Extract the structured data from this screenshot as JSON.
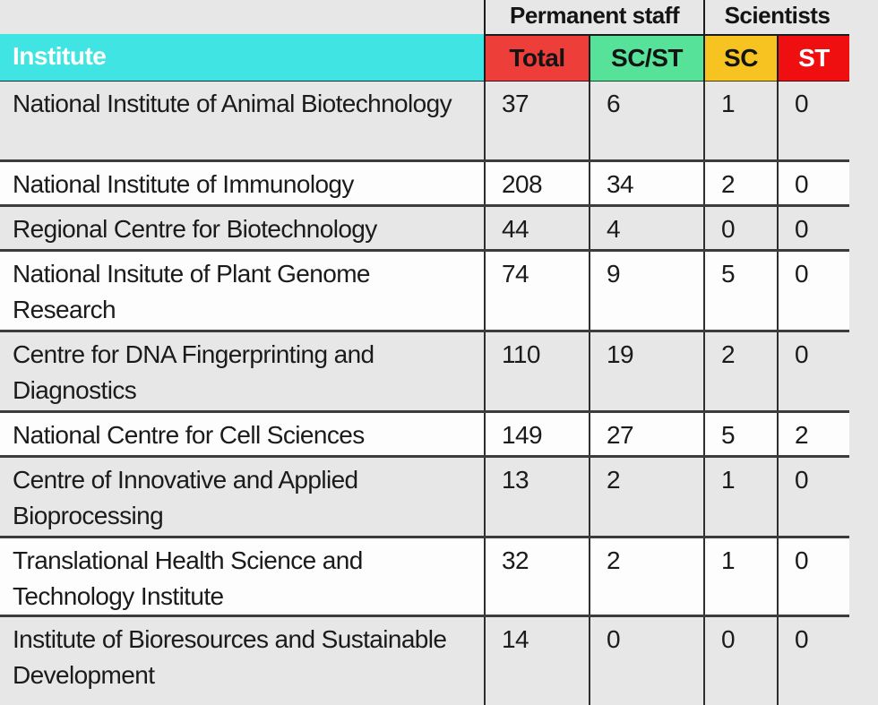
{
  "table": {
    "group_headers": {
      "permanent_staff": "Permanent staff",
      "scientists": "Scientists"
    },
    "columns": {
      "institute": "Institute",
      "total": "Total",
      "sc_st": "SC/ST",
      "sc": "SC",
      "st": "ST"
    },
    "rows": [
      {
        "institute": "National Institute of Animal Biotechnology",
        "total": "37",
        "sc_st": "6",
        "sc": "1",
        "st": "0"
      },
      {
        "institute": "National Institute of Immunology",
        "total": "208",
        "sc_st": "34",
        "sc": "2",
        "st": "0"
      },
      {
        "institute": "Regional Centre for Biotechnology",
        "total": "44",
        "sc_st": "4",
        "sc": "0",
        "st": "0"
      },
      {
        "institute": "National Insitute of Plant Genome Research",
        "total": "74",
        "sc_st": "9",
        "sc": "5",
        "st": "0"
      },
      {
        "institute": "Centre for DNA Fingerprinting and Diagnostics",
        "total": "110",
        "sc_st": "19",
        "sc": "2",
        "st": "0"
      },
      {
        "institute": "National Centre for Cell Sciences",
        "total": "149",
        "sc_st": "27",
        "sc": "5",
        "st": "2"
      },
      {
        "institute": "Centre of Innovative and Applied Bioprocessing",
        "total": "13",
        "sc_st": "2",
        "sc": "1",
        "st": "0"
      },
      {
        "institute": "Translational Health Science and Technology Institute",
        "total": "32",
        "sc_st": "2",
        "sc": "1",
        "st": "0"
      },
      {
        "institute": "Institute of Bioresources and Sustainable Development",
        "total": "14",
        "sc_st": "0",
        "sc": "0",
        "st": "0"
      }
    ]
  },
  "colors": {
    "institute_header_bg": "#40e5e3",
    "total_header_bg": "#ee3e3a",
    "sc_st_header_bg": "#57e299",
    "sc_header_bg": "#f6c320",
    "st_header_bg": "#ef0e10",
    "row_gray_bg": "#e8e7e7",
    "row_white_bg": "#fdfdfd",
    "body_text": "#1b1b1b"
  },
  "chart_data": {
    "type": "table",
    "title": "",
    "column_groups": [
      {
        "label": "Permanent staff",
        "columns": [
          "Total",
          "SC/ST"
        ]
      },
      {
        "label": "Scientists",
        "columns": [
          "SC",
          "ST"
        ]
      }
    ],
    "columns": [
      "Institute",
      "Total",
      "SC/ST",
      "SC",
      "ST"
    ],
    "rows": [
      [
        "National Institute of Animal Biotechnology",
        37,
        6,
        1,
        0
      ],
      [
        "National Institute of Immunology",
        208,
        34,
        2,
        0
      ],
      [
        "Regional Centre for Biotechnology",
        44,
        4,
        0,
        0
      ],
      [
        "National Insitute of Plant Genome Research",
        74,
        9,
        5,
        0
      ],
      [
        "Centre for DNA Fingerprinting and Diagnostics",
        110,
        19,
        2,
        0
      ],
      [
        "National Centre for Cell Sciences",
        149,
        27,
        5,
        2
      ],
      [
        "Centre of Innovative and Applied Bioprocessing",
        13,
        2,
        1,
        0
      ],
      [
        "Translational Health Science and Technology Institute",
        32,
        2,
        1,
        0
      ],
      [
        "Institute of Bioresources and Sustainable Development",
        14,
        0,
        0,
        0
      ]
    ]
  }
}
